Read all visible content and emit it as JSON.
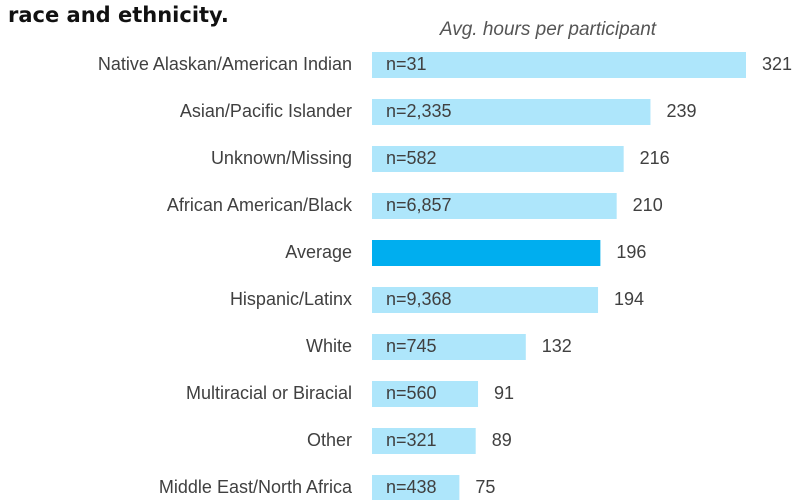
{
  "chart_data": {
    "type": "bar",
    "orientation": "horizontal",
    "title": "race and ethnicity.",
    "subtitle": "Avg. hours per participant",
    "categories": [
      "Native Alaskan/American Indian",
      "Asian/Pacific Islander",
      "Unknown/Missing",
      "African American/Black",
      "Average",
      "Hispanic/Latinx",
      "White",
      "Multiracial or Biracial",
      "Other",
      "Middle East/North Africa"
    ],
    "values": [
      321,
      239,
      216,
      210,
      196,
      194,
      132,
      91,
      89,
      75
    ],
    "bar_labels": [
      "n=31",
      "n=2,335",
      "n=582",
      "n=6,857",
      null,
      "n=9,368",
      "n=745",
      "n=560",
      "n=321",
      "n=438"
    ],
    "colors": [
      "#aee6fb",
      "#aee6fb",
      "#aee6fb",
      "#aee6fb",
      "#00aeef",
      "#aee6fb",
      "#aee6fb",
      "#aee6fb",
      "#aee6fb",
      "#aee6fb"
    ]
  }
}
